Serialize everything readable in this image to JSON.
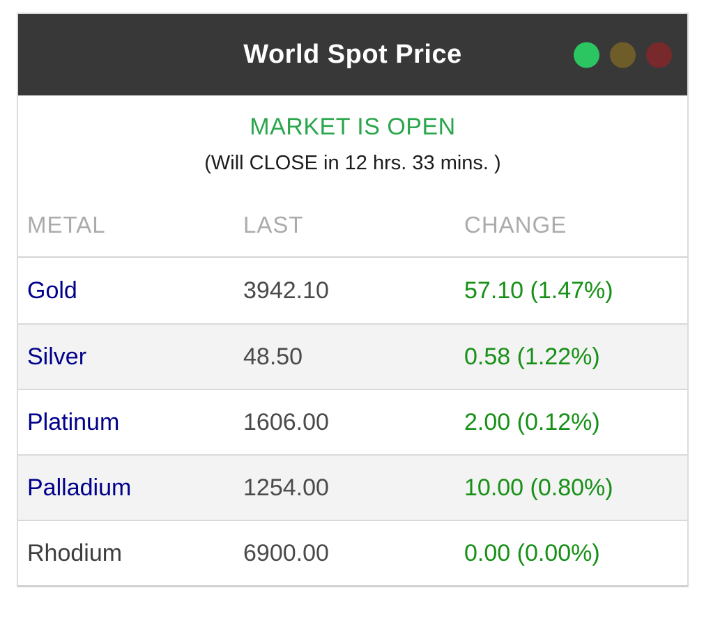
{
  "window": {
    "title": "World Spot Price",
    "dots": [
      {
        "name": "green-status-dot",
        "color": "#2bc561"
      },
      {
        "name": "olive-status-dot",
        "color": "#6e5c29"
      },
      {
        "name": "maroon-status-dot",
        "color": "#78292b"
      }
    ]
  },
  "status": {
    "headline": "MARKET IS OPEN",
    "countdown": "(Will CLOSE in 12 hrs. 33 mins. )"
  },
  "table": {
    "columns": [
      "METAL",
      "LAST",
      "CHANGE"
    ],
    "rows": [
      {
        "metal": "Gold",
        "last": "3942.10",
        "change": "57.10 (1.47%)",
        "metal_is_link": true
      },
      {
        "metal": "Silver",
        "last": "48.50",
        "change": "0.58 (1.22%)",
        "metal_is_link": true
      },
      {
        "metal": "Platinum",
        "last": "1606.00",
        "change": "2.00 (0.12%)",
        "metal_is_link": true
      },
      {
        "metal": "Palladium",
        "last": "1254.00",
        "change": "10.00 (0.80%)",
        "metal_is_link": true
      },
      {
        "metal": "Rhodium",
        "last": "6900.00",
        "change": "0.00 (0.00%)",
        "metal_is_link": false
      }
    ]
  },
  "colors": {
    "header_bg": "#383838",
    "status_green": "#2aa64c",
    "change_green": "#169016",
    "metal_link_blue": "#00008b",
    "plain_metal_gray": "#3d3d3d",
    "last_value_gray": "#4a4a4a",
    "column_header_gray": "#ababab"
  }
}
